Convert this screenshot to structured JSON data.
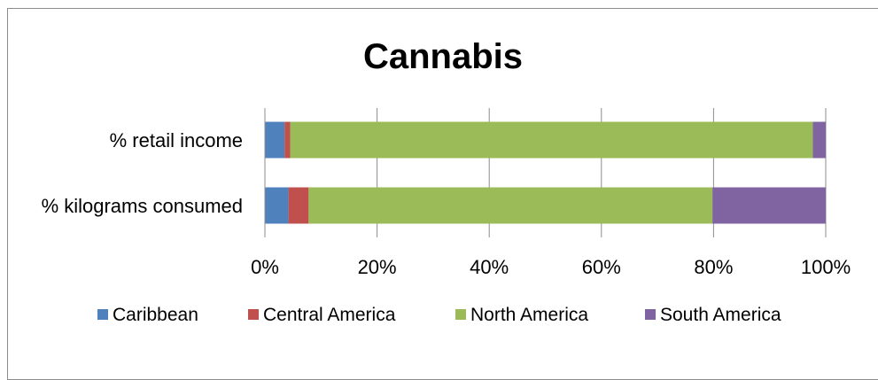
{
  "chart_data": {
    "type": "bar",
    "orientation": "horizontal",
    "stacked": "percent",
    "title": "Cannabis",
    "xlabel": "",
    "ylabel": "",
    "xlim": [
      0,
      100
    ],
    "x_ticks": [
      "0%",
      "20%",
      "40%",
      "60%",
      "80%",
      "100%"
    ],
    "grid": true,
    "legend_position": "bottom",
    "categories": [
      "% retail income",
      "% kilograms consumed"
    ],
    "series": [
      {
        "name": "Caribbean",
        "color": "#4f81bd",
        "values": [
          3.5,
          4.2
        ]
      },
      {
        "name": "Central America",
        "color": "#c0504d",
        "values": [
          1.0,
          3.6
        ]
      },
      {
        "name": "North America",
        "color": "#9bbb59",
        "values": [
          93.2,
          72.0
        ]
      },
      {
        "name": "South America",
        "color": "#8064a2",
        "values": [
          2.3,
          20.2
        ]
      }
    ]
  }
}
